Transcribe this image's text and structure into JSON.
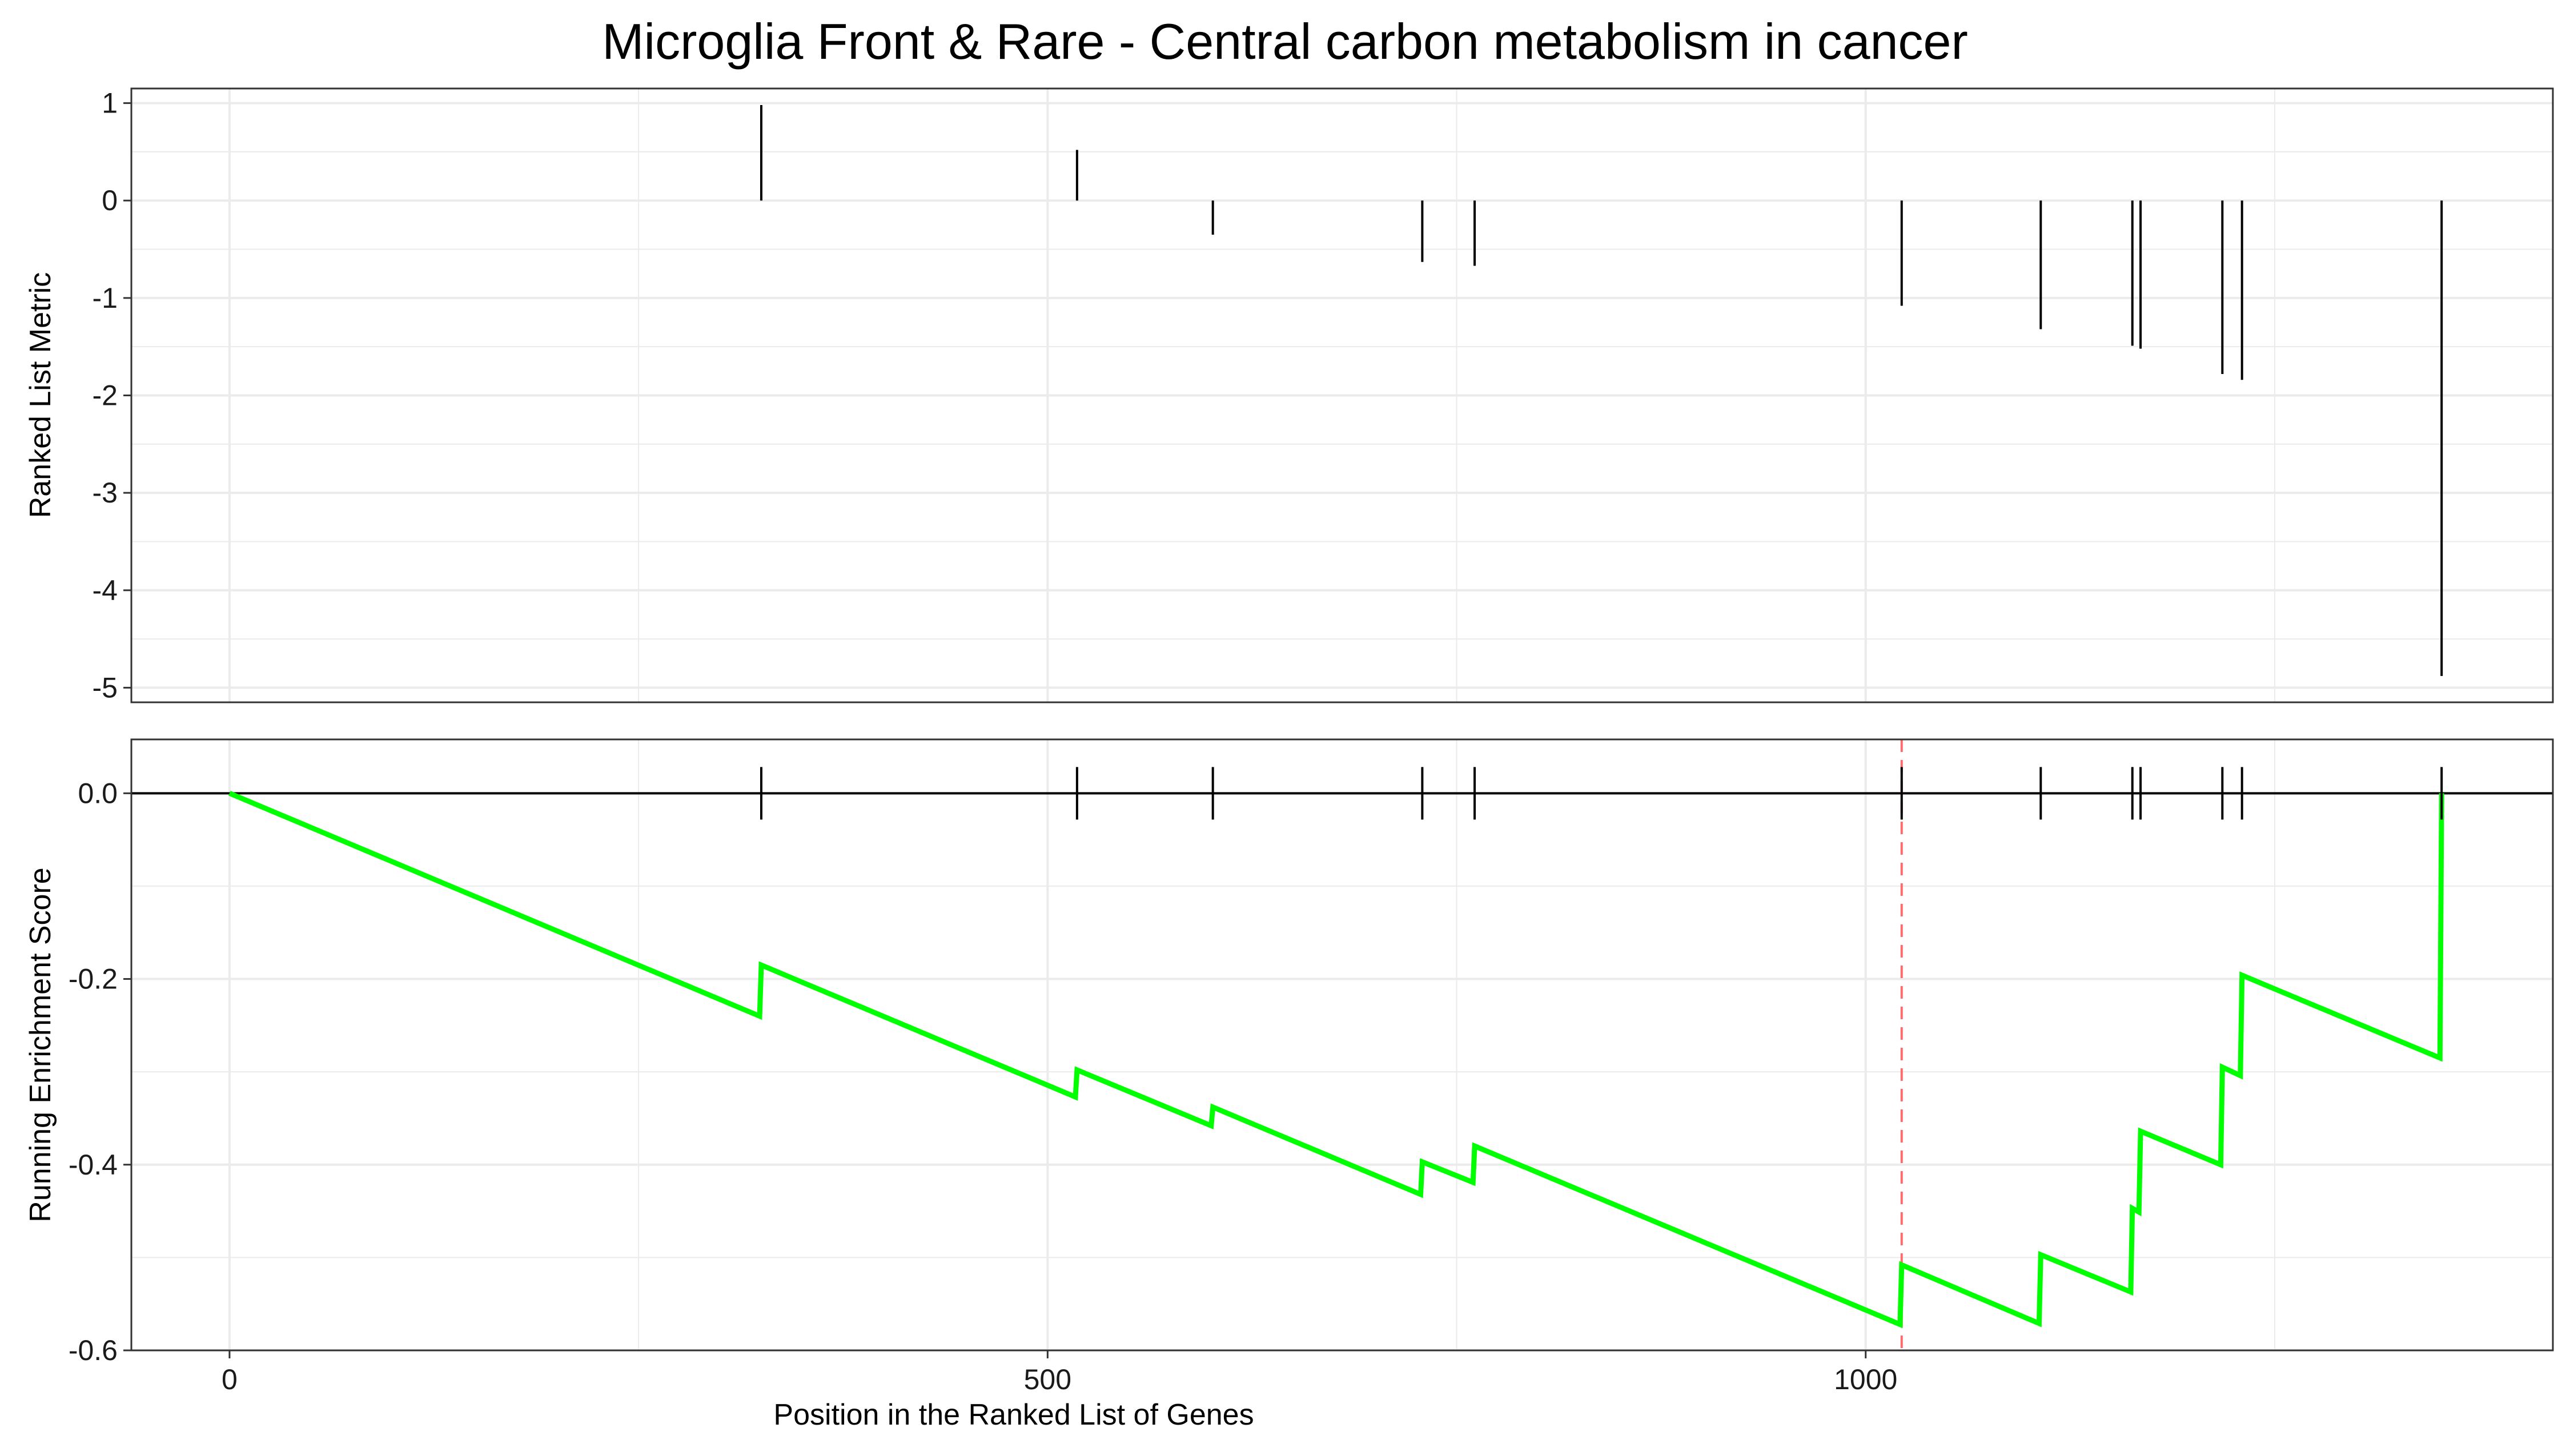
{
  "chart_data": {
    "type": "line",
    "title": "Microglia Front & Rare - Central carbon metabolism in cancer",
    "xlabel": "Position in the Ranked List of Genes",
    "x_ticks": [
      0,
      500,
      1000
    ],
    "xlim": [
      -60,
      1420
    ],
    "grid": true,
    "panels": [
      {
        "name": "ranked-metric",
        "ylabel": "Ranked List Metric",
        "ylim": [
          -5.15,
          1.15
        ],
        "y_ticks": [
          1,
          0,
          -1,
          -2,
          -3,
          -4,
          -5
        ],
        "y_tick_labels": [
          "1",
          "0",
          "-1",
          "-2",
          "-3",
          "-4",
          "-5"
        ],
        "series": [
          {
            "type": "vlines",
            "positions": [
              325,
              518,
              601,
              729,
              761,
              1022,
              1107,
              1163,
              1168,
              1218,
              1230,
              1352
            ],
            "values": [
              0.98,
              0.52,
              -0.35,
              -0.63,
              -0.67,
              -1.08,
              -1.32,
              -1.49,
              -1.52,
              -1.78,
              -1.84,
              -4.88
            ]
          }
        ]
      },
      {
        "name": "running-es",
        "ylabel": "Running Enrichment Score",
        "ylim": [
          -0.6,
          0.058
        ],
        "y_ticks": [
          0.0,
          -0.2,
          -0.4,
          -0.6
        ],
        "y_tick_labels": [
          "0.0",
          "-0.2",
          "-0.4",
          "-0.6"
        ],
        "hit_positions": [
          325,
          518,
          601,
          729,
          761,
          1022,
          1107,
          1163,
          1168,
          1218,
          1230,
          1352
        ],
        "max_deviation_x": 1022,
        "series": [
          {
            "type": "line",
            "color": "#00FF00",
            "x": [
              0,
              324,
              325,
              517,
              518,
              600,
              601,
              728,
              729,
              760,
              761,
              1021,
              1022,
              1106,
              1107,
              1162,
              1163,
              1167,
              1168,
              1217,
              1218,
              1229,
              1230,
              1351,
              1352
            ],
            "y": [
              0.0,
              -0.24,
              -0.185,
              -0.327,
              -0.298,
              -0.358,
              -0.338,
              -0.432,
              -0.397,
              -0.419,
              -0.38,
              -0.572,
              -0.508,
              -0.571,
              -0.497,
              -0.537,
              -0.447,
              -0.451,
              -0.364,
              -0.4,
              -0.295,
              -0.304,
              -0.196,
              -0.285,
              0.0
            ]
          }
        ]
      }
    ]
  },
  "colors": {
    "curve": "#00FF00",
    "vline": "#000000",
    "zero_line": "#000000",
    "max_dev_line": "#FF6B6B",
    "grid": "#EBEBEB",
    "panel_border": "#333333"
  }
}
